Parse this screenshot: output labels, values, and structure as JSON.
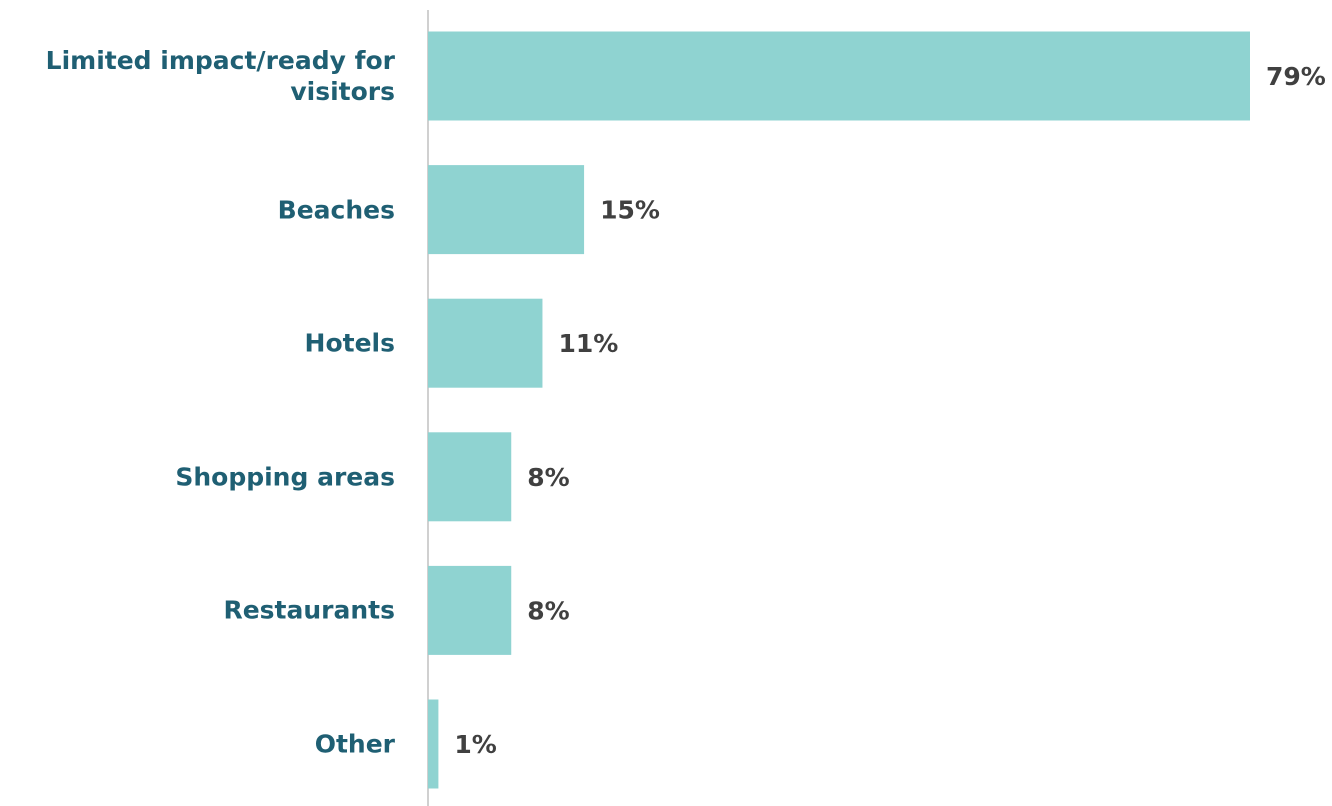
{
  "chart_data": {
    "type": "barh",
    "categories": [
      "Limited impact/ready for visitors",
      "Beaches",
      "Hotels",
      "Shopping areas",
      "Restaurants",
      "Other"
    ],
    "values": [
      79,
      15,
      11,
      8,
      8,
      1
    ],
    "value_labels": [
      "79%",
      "15%",
      "11%",
      "8%",
      "8%",
      "1%"
    ],
    "color": "#8fd3d1"
  }
}
